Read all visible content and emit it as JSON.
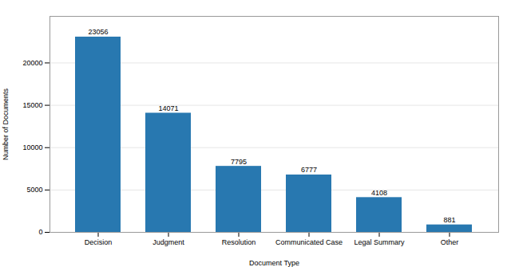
{
  "chart_data": {
    "type": "bar",
    "categories": [
      "Decision",
      "Judgment",
      "Resolution",
      "Communicated Case",
      "Legal Summary",
      "Other"
    ],
    "values": [
      23056,
      14071,
      7795,
      6777,
      4108,
      881
    ],
    "color": "#2878b0",
    "xlabel": "Document Type",
    "ylabel": "Number of Documents",
    "ylim": [
      0,
      25500
    ],
    "yticks": [
      0,
      5000,
      10000,
      15000,
      20000
    ],
    "grid": true,
    "data_labels": true
  }
}
